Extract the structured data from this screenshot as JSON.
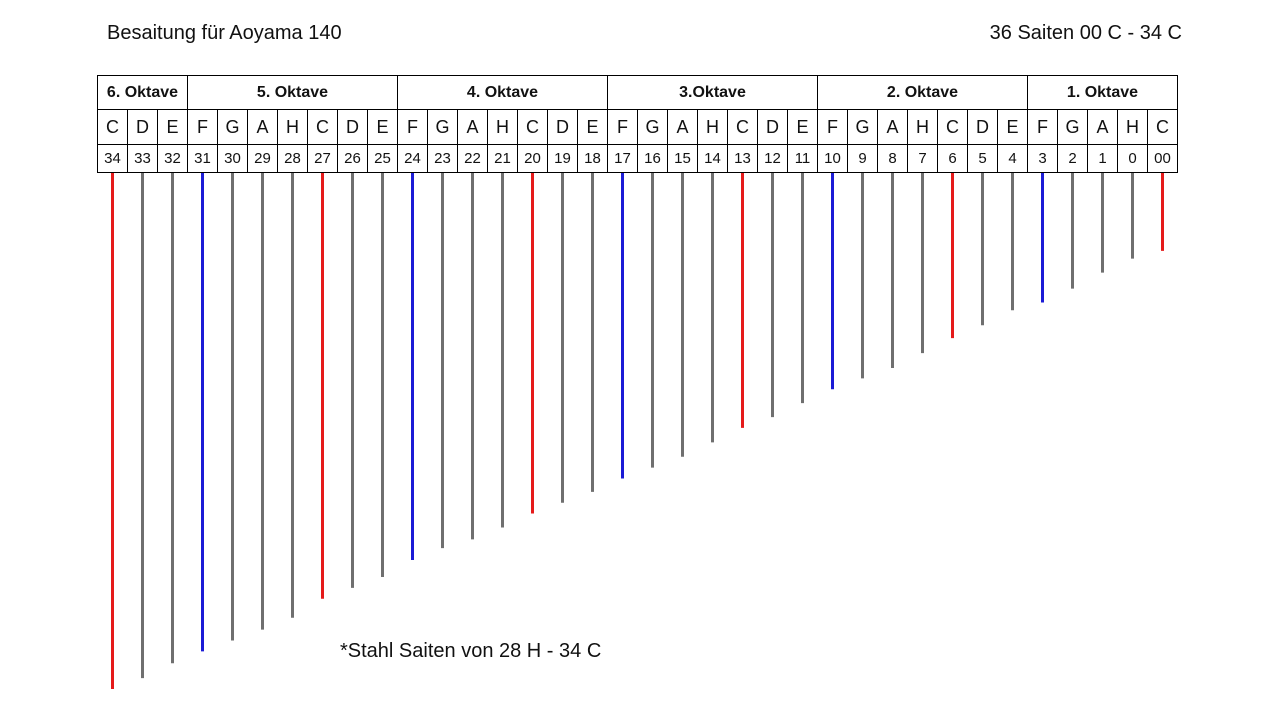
{
  "title_left": "Besaitung für Aoyama 140",
  "title_right": "36 Saiten 00 C - 34 C",
  "footnote": "*Stahl Saiten von 28 H - 34 C",
  "colors": {
    "C": "#e51a1a",
    "F": "#1b1bd6",
    "other": "#6f6f6f"
  },
  "octaves": [
    {
      "label": "6. Oktave",
      "span": 3
    },
    {
      "label": "5. Oktave",
      "span": 7
    },
    {
      "label": "4. Oktave",
      "span": 7
    },
    {
      "label": "3.Oktave",
      "span": 7
    },
    {
      "label": "2. Oktave",
      "span": 7
    },
    {
      "label": "1. Oktave",
      "span": 5
    }
  ],
  "strings": [
    {
      "note": "C",
      "number": "34",
      "relative_length": 1.0
    },
    {
      "note": "D",
      "number": "33",
      "relative_length": 0.979
    },
    {
      "note": "E",
      "number": "32",
      "relative_length": 0.95
    },
    {
      "note": "F",
      "number": "31",
      "relative_length": 0.927
    },
    {
      "note": "G",
      "number": "30",
      "relative_length": 0.906
    },
    {
      "note": "A",
      "number": "29",
      "relative_length": 0.885
    },
    {
      "note": "H",
      "number": "28",
      "relative_length": 0.862
    },
    {
      "note": "C",
      "number": "27",
      "relative_length": 0.825
    },
    {
      "note": "D",
      "number": "26",
      "relative_length": 0.804
    },
    {
      "note": "E",
      "number": "25",
      "relative_length": 0.783
    },
    {
      "note": "F",
      "number": "24",
      "relative_length": 0.75
    },
    {
      "note": "G",
      "number": "23",
      "relative_length": 0.727
    },
    {
      "note": "A",
      "number": "22",
      "relative_length": 0.71
    },
    {
      "note": "H",
      "number": "21",
      "relative_length": 0.687
    },
    {
      "note": "C",
      "number": "20",
      "relative_length": 0.66
    },
    {
      "note": "D",
      "number": "19",
      "relative_length": 0.639
    },
    {
      "note": "E",
      "number": "18",
      "relative_length": 0.618
    },
    {
      "note": "F",
      "number": "17",
      "relative_length": 0.592
    },
    {
      "note": "G",
      "number": "16",
      "relative_length": 0.571
    },
    {
      "note": "A",
      "number": "15",
      "relative_length": 0.55
    },
    {
      "note": "H",
      "number": "14",
      "relative_length": 0.522
    },
    {
      "note": "C",
      "number": "13",
      "relative_length": 0.494
    },
    {
      "note": "D",
      "number": "12",
      "relative_length": 0.473
    },
    {
      "note": "E",
      "number": "11",
      "relative_length": 0.446
    },
    {
      "note": "F",
      "number": "10",
      "relative_length": 0.419
    },
    {
      "note": "G",
      "number": "9",
      "relative_length": 0.398
    },
    {
      "note": "A",
      "number": "8",
      "relative_length": 0.378
    },
    {
      "note": "H",
      "number": "7",
      "relative_length": 0.349
    },
    {
      "note": "C",
      "number": "6",
      "relative_length": 0.32
    },
    {
      "note": "D",
      "number": "5",
      "relative_length": 0.295
    },
    {
      "note": "E",
      "number": "4",
      "relative_length": 0.266
    },
    {
      "note": "F",
      "number": "3",
      "relative_length": 0.251
    },
    {
      "note": "G",
      "number": "2",
      "relative_length": 0.224
    },
    {
      "note": "A",
      "number": "1",
      "relative_length": 0.193
    },
    {
      "note": "H",
      "number": "0",
      "relative_length": 0.166
    },
    {
      "note": "C",
      "number": "00",
      "relative_length": 0.151
    }
  ]
}
